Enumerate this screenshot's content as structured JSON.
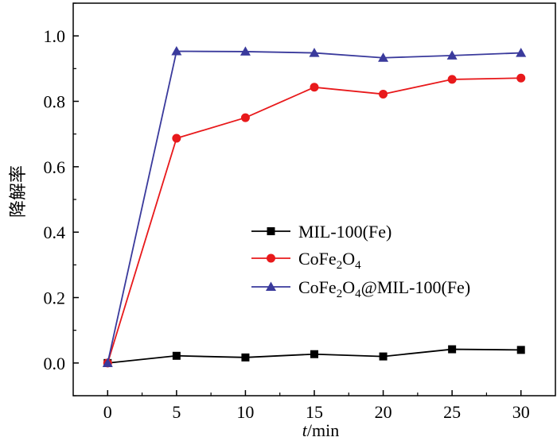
{
  "chart_data": {
    "type": "line",
    "x": [
      0,
      5,
      10,
      15,
      20,
      25,
      30
    ],
    "xlabel_italic": "t",
    "xlabel_rest": "/min",
    "ylabel": "降解率",
    "xlim": [
      -2.5,
      32.5
    ],
    "ylim": [
      -0.1,
      1.1
    ],
    "xticks": [
      "0",
      "5",
      "10",
      "15",
      "20",
      "25",
      "30"
    ],
    "yticks": [
      "0.0",
      "0.2",
      "0.4",
      "0.6",
      "0.8",
      "1.0"
    ],
    "grid": false,
    "legend_position": "center-right",
    "series": [
      {
        "name": "MIL-100(Fe)",
        "legend_parts": [
          [
            "MIL-100(Fe)",
            ""
          ]
        ],
        "marker": "square",
        "color": "#000000",
        "values": [
          0.0,
          0.022,
          0.017,
          0.027,
          0.02,
          0.042,
          0.04
        ]
      },
      {
        "name": "CoFe2O4",
        "legend_parts": [
          [
            "CoFe",
            ""
          ],
          [
            "2",
            "sub"
          ],
          [
            "O",
            ""
          ],
          [
            "4",
            "sub"
          ]
        ],
        "marker": "circle",
        "color": "#e8191b",
        "values": [
          0.0,
          0.687,
          0.75,
          0.843,
          0.822,
          0.867,
          0.871
        ]
      },
      {
        "name": "CoFe2O4@MIL-100(Fe)",
        "legend_parts": [
          [
            "CoFe",
            ""
          ],
          [
            "2",
            "sub"
          ],
          [
            "O",
            ""
          ],
          [
            "4",
            "sub"
          ],
          [
            "@MIL-100(Fe)",
            ""
          ]
        ],
        "marker": "triangle",
        "color": "#3a3a9c",
        "values": [
          0.0,
          0.953,
          0.952,
          0.948,
          0.933,
          0.94,
          0.948
        ]
      }
    ]
  }
}
